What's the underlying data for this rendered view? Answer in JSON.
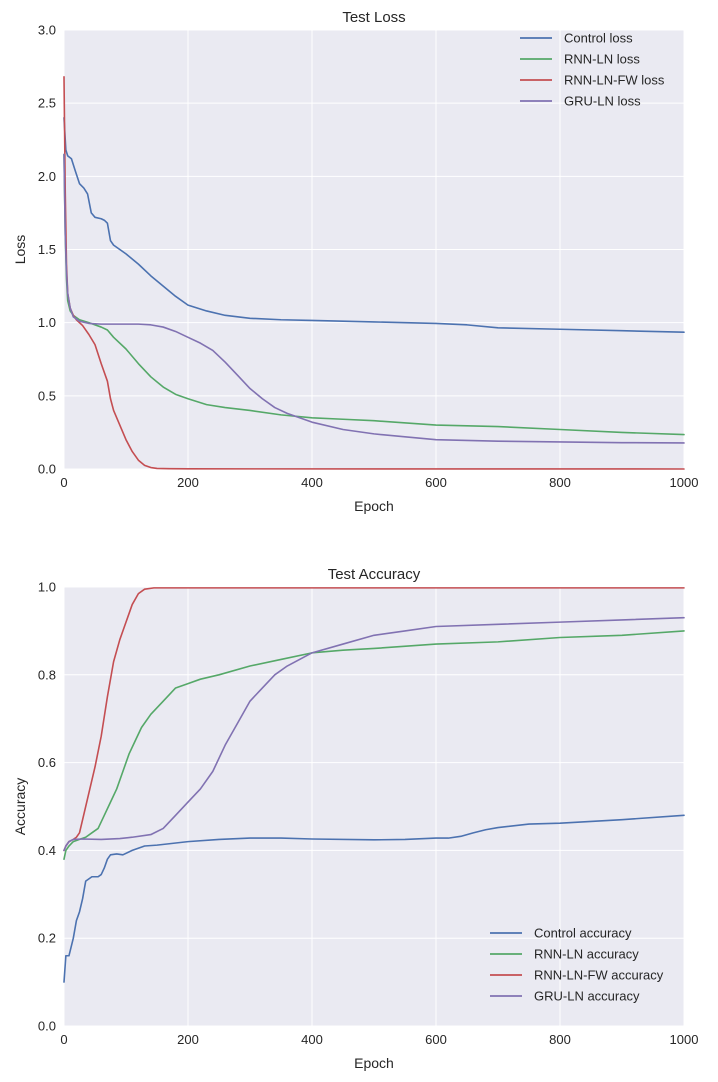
{
  "colors": {
    "control": "#4c72b0",
    "rnn_ln": "#55a868",
    "rnn_ln_fw": "#c44e52",
    "gru_ln": "#8172b2",
    "plot_bg": "#eaeaf2",
    "grid": "#ffffff"
  },
  "chart_data": [
    {
      "type": "line",
      "title": "Test Loss",
      "xlabel": "Epoch",
      "ylabel": "Loss",
      "xlim": [
        0,
        1000
      ],
      "ylim": [
        0.0,
        3.0
      ],
      "xticks": [
        0,
        200,
        400,
        600,
        800,
        1000
      ],
      "xtick_labels": [
        "0",
        "200",
        "400",
        "600",
        "800",
        "1000"
      ],
      "yticks": [
        0.0,
        0.5,
        1.0,
        1.5,
        2.0,
        2.5,
        3.0
      ],
      "ytick_labels": [
        "0.0",
        "0.5",
        "1.0",
        "1.5",
        "2.0",
        "2.5",
        "3.0"
      ],
      "grid": true,
      "legend_position": "top-right",
      "series": [
        {
          "name": "Control loss",
          "key": "control",
          "points": [
            [
              0,
              2.4
            ],
            [
              3,
              2.18
            ],
            [
              6,
              2.14
            ],
            [
              12,
              2.12
            ],
            [
              18,
              2.04
            ],
            [
              25,
              1.95
            ],
            [
              32,
              1.92
            ],
            [
              38,
              1.88
            ],
            [
              44,
              1.75
            ],
            [
              50,
              1.72
            ],
            [
              60,
              1.71
            ],
            [
              65,
              1.7
            ],
            [
              70,
              1.68
            ],
            [
              75,
              1.56
            ],
            [
              80,
              1.53
            ],
            [
              90,
              1.5
            ],
            [
              100,
              1.47
            ],
            [
              120,
              1.4
            ],
            [
              140,
              1.32
            ],
            [
              160,
              1.25
            ],
            [
              180,
              1.18
            ],
            [
              200,
              1.12
            ],
            [
              230,
              1.08
            ],
            [
              260,
              1.05
            ],
            [
              300,
              1.03
            ],
            [
              350,
              1.02
            ],
            [
              400,
              1.015
            ],
            [
              500,
              1.005
            ],
            [
              600,
              0.995
            ],
            [
              650,
              0.985
            ],
            [
              700,
              0.965
            ],
            [
              800,
              0.955
            ],
            [
              900,
              0.945
            ],
            [
              1000,
              0.935
            ]
          ]
        },
        {
          "name": "RNN-LN loss",
          "key": "rnn_ln",
          "points": [
            [
              0,
              2.15
            ],
            [
              2,
              1.6
            ],
            [
              4,
              1.3
            ],
            [
              6,
              1.15
            ],
            [
              10,
              1.08
            ],
            [
              15,
              1.05
            ],
            [
              25,
              1.02
            ],
            [
              40,
              1.0
            ],
            [
              60,
              0.97
            ],
            [
              70,
              0.95
            ],
            [
              80,
              0.9
            ],
            [
              100,
              0.82
            ],
            [
              120,
              0.72
            ],
            [
              140,
              0.63
            ],
            [
              160,
              0.56
            ],
            [
              180,
              0.51
            ],
            [
              200,
              0.48
            ],
            [
              230,
              0.44
            ],
            [
              260,
              0.42
            ],
            [
              300,
              0.4
            ],
            [
              350,
              0.37
            ],
            [
              400,
              0.35
            ],
            [
              450,
              0.34
            ],
            [
              500,
              0.33
            ],
            [
              600,
              0.3
            ],
            [
              700,
              0.29
            ],
            [
              800,
              0.27
            ],
            [
              900,
              0.25
            ],
            [
              1000,
              0.235
            ]
          ]
        },
        {
          "name": "RNN-LN-FW loss",
          "key": "rnn_ln_fw",
          "points": [
            [
              0,
              2.68
            ],
            [
              2,
              1.9
            ],
            [
              4,
              1.4
            ],
            [
              6,
              1.2
            ],
            [
              10,
              1.1
            ],
            [
              15,
              1.05
            ],
            [
              20,
              1.02
            ],
            [
              30,
              0.98
            ],
            [
              40,
              0.92
            ],
            [
              50,
              0.85
            ],
            [
              60,
              0.72
            ],
            [
              70,
              0.6
            ],
            [
              75,
              0.48
            ],
            [
              80,
              0.4
            ],
            [
              90,
              0.3
            ],
            [
              100,
              0.2
            ],
            [
              110,
              0.12
            ],
            [
              120,
              0.06
            ],
            [
              130,
              0.025
            ],
            [
              140,
              0.01
            ],
            [
              150,
              0.004
            ],
            [
              170,
              0.002
            ],
            [
              200,
              0.001
            ],
            [
              1000,
              0.0
            ]
          ]
        },
        {
          "name": "GRU-LN loss",
          "key": "gru_ln",
          "points": [
            [
              0,
              2.15
            ],
            [
              2,
              1.6
            ],
            [
              4,
              1.35
            ],
            [
              6,
              1.2
            ],
            [
              10,
              1.1
            ],
            [
              15,
              1.04
            ],
            [
              25,
              1.01
            ],
            [
              40,
              0.995
            ],
            [
              60,
              0.99
            ],
            [
              80,
              0.99
            ],
            [
              100,
              0.99
            ],
            [
              120,
              0.99
            ],
            [
              140,
              0.985
            ],
            [
              160,
              0.97
            ],
            [
              180,
              0.94
            ],
            [
              200,
              0.9
            ],
            [
              220,
              0.86
            ],
            [
              240,
              0.81
            ],
            [
              260,
              0.73
            ],
            [
              280,
              0.64
            ],
            [
              300,
              0.55
            ],
            [
              320,
              0.48
            ],
            [
              340,
              0.42
            ],
            [
              360,
              0.38
            ],
            [
              380,
              0.35
            ],
            [
              400,
              0.32
            ],
            [
              450,
              0.27
            ],
            [
              500,
              0.24
            ],
            [
              550,
              0.22
            ],
            [
              600,
              0.2
            ],
            [
              700,
              0.19
            ],
            [
              800,
              0.185
            ],
            [
              900,
              0.18
            ],
            [
              1000,
              0.178
            ]
          ]
        }
      ]
    },
    {
      "type": "line",
      "title": "Test Accuracy",
      "xlabel": "Epoch",
      "ylabel": "Accuracy",
      "xlim": [
        0,
        1000
      ],
      "ylim": [
        0.0,
        1.0
      ],
      "xticks": [
        0,
        200,
        400,
        600,
        800,
        1000
      ],
      "xtick_labels": [
        "0",
        "200",
        "400",
        "600",
        "800",
        "1000"
      ],
      "yticks": [
        0.0,
        0.2,
        0.4,
        0.6,
        0.8,
        1.0
      ],
      "ytick_labels": [
        "0.0",
        "0.2",
        "0.4",
        "0.6",
        "0.8",
        "1.0"
      ],
      "grid": true,
      "legend_position": "bottom-right",
      "series": [
        {
          "name": "Control accuracy",
          "key": "control",
          "points": [
            [
              0,
              0.1
            ],
            [
              3,
              0.16
            ],
            [
              8,
              0.16
            ],
            [
              15,
              0.2
            ],
            [
              20,
              0.24
            ],
            [
              25,
              0.26
            ],
            [
              30,
              0.29
            ],
            [
              35,
              0.33
            ],
            [
              45,
              0.34
            ],
            [
              55,
              0.34
            ],
            [
              60,
              0.345
            ],
            [
              65,
              0.36
            ],
            [
              70,
              0.38
            ],
            [
              75,
              0.39
            ],
            [
              85,
              0.392
            ],
            [
              95,
              0.39
            ],
            [
              110,
              0.4
            ],
            [
              130,
              0.41
            ],
            [
              150,
              0.412
            ],
            [
              200,
              0.42
            ],
            [
              250,
              0.425
            ],
            [
              300,
              0.428
            ],
            [
              350,
              0.428
            ],
            [
              400,
              0.426
            ],
            [
              500,
              0.424
            ],
            [
              550,
              0.425
            ],
            [
              600,
              0.428
            ],
            [
              620,
              0.428
            ],
            [
              640,
              0.432
            ],
            [
              660,
              0.44
            ],
            [
              680,
              0.447
            ],
            [
              700,
              0.452
            ],
            [
              750,
              0.46
            ],
            [
              800,
              0.462
            ],
            [
              900,
              0.47
            ],
            [
              1000,
              0.48
            ]
          ]
        },
        {
          "name": "RNN-LN accuracy",
          "key": "rnn_ln",
          "points": [
            [
              0,
              0.38
            ],
            [
              3,
              0.4
            ],
            [
              8,
              0.41
            ],
            [
              15,
              0.42
            ],
            [
              25,
              0.425
            ],
            [
              35,
              0.43
            ],
            [
              45,
              0.44
            ],
            [
              55,
              0.45
            ],
            [
              65,
              0.48
            ],
            [
              75,
              0.51
            ],
            [
              85,
              0.54
            ],
            [
              95,
              0.58
            ],
            [
              105,
              0.62
            ],
            [
              115,
              0.65
            ],
            [
              125,
              0.68
            ],
            [
              140,
              0.71
            ],
            [
              160,
              0.74
            ],
            [
              180,
              0.77
            ],
            [
              200,
              0.78
            ],
            [
              220,
              0.79
            ],
            [
              250,
              0.8
            ],
            [
              300,
              0.82
            ],
            [
              350,
              0.835
            ],
            [
              400,
              0.85
            ],
            [
              450,
              0.856
            ],
            [
              500,
              0.86
            ],
            [
              600,
              0.87
            ],
            [
              700,
              0.875
            ],
            [
              800,
              0.885
            ],
            [
              900,
              0.89
            ],
            [
              1000,
              0.9
            ]
          ]
        },
        {
          "name": "RNN-LN-FW accuracy",
          "key": "rnn_ln_fw",
          "points": [
            [
              0,
              0.4
            ],
            [
              3,
              0.41
            ],
            [
              8,
              0.42
            ],
            [
              15,
              0.425
            ],
            [
              20,
              0.43
            ],
            [
              25,
              0.44
            ],
            [
              30,
              0.47
            ],
            [
              40,
              0.53
            ],
            [
              50,
              0.59
            ],
            [
              60,
              0.66
            ],
            [
              70,
              0.75
            ],
            [
              80,
              0.83
            ],
            [
              90,
              0.88
            ],
            [
              100,
              0.92
            ],
            [
              110,
              0.96
            ],
            [
              120,
              0.985
            ],
            [
              130,
              0.995
            ],
            [
              145,
              0.998
            ],
            [
              200,
              0.998
            ],
            [
              1000,
              0.998
            ]
          ]
        },
        {
          "name": "GRU-LN accuracy",
          "key": "gru_ln",
          "points": [
            [
              0,
              0.4
            ],
            [
              3,
              0.41
            ],
            [
              8,
              0.42
            ],
            [
              15,
              0.425
            ],
            [
              30,
              0.426
            ],
            [
              60,
              0.425
            ],
            [
              90,
              0.427
            ],
            [
              110,
              0.43
            ],
            [
              140,
              0.436
            ],
            [
              160,
              0.45
            ],
            [
              180,
              0.48
            ],
            [
              200,
              0.51
            ],
            [
              220,
              0.54
            ],
            [
              240,
              0.58
            ],
            [
              260,
              0.64
            ],
            [
              280,
              0.69
            ],
            [
              300,
              0.74
            ],
            [
              320,
              0.77
            ],
            [
              340,
              0.8
            ],
            [
              360,
              0.82
            ],
            [
              380,
              0.835
            ],
            [
              400,
              0.85
            ],
            [
              450,
              0.87
            ],
            [
              500,
              0.89
            ],
            [
              550,
              0.9
            ],
            [
              600,
              0.91
            ],
            [
              700,
              0.915
            ],
            [
              800,
              0.92
            ],
            [
              900,
              0.925
            ],
            [
              1000,
              0.93
            ]
          ]
        }
      ]
    }
  ]
}
